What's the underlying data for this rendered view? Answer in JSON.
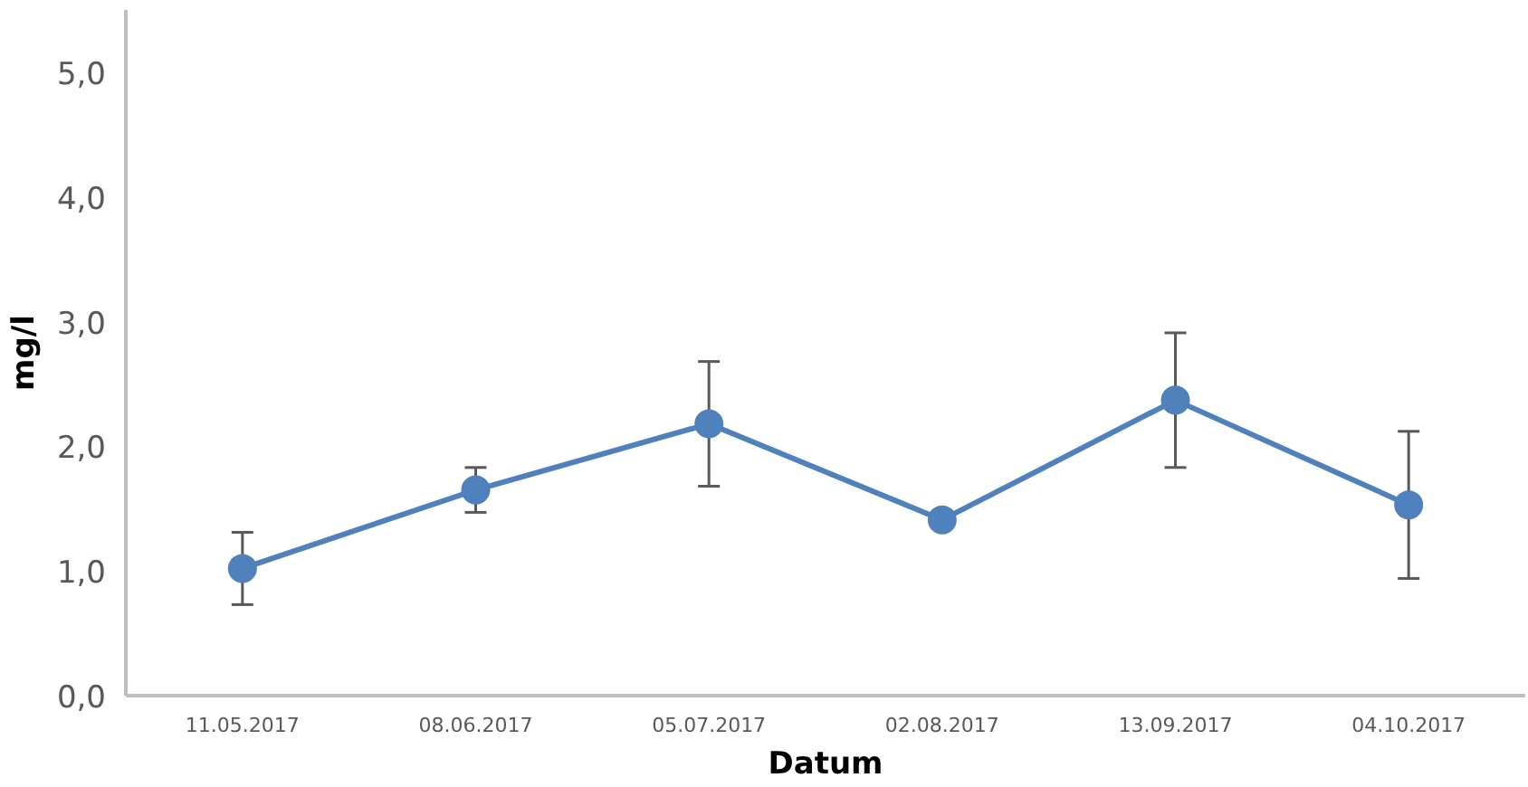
{
  "chart_data": {
    "type": "line",
    "xlabel": "Datum",
    "ylabel": "mg/l",
    "categories": [
      "11.05.2017",
      "08.06.2017",
      "05.07.2017",
      "02.08.2017",
      "13.09.2017",
      "04.10.2017"
    ],
    "series": [
      {
        "color": "#4f81bd",
        "values": [
          1.02,
          1.65,
          2.18,
          1.41,
          2.37,
          1.53
        ],
        "errors": [
          0.29,
          0.18,
          0.5,
          null,
          0.54,
          0.59
        ]
      }
    ],
    "ylim": [
      0,
      5.5
    ],
    "yticks": [
      {
        "value": 0,
        "label": "0,0"
      },
      {
        "value": 1,
        "label": "1,0"
      },
      {
        "value": 2,
        "label": "2,0"
      },
      {
        "value": 3,
        "label": "3,0"
      },
      {
        "value": 4,
        "label": "4,0"
      },
      {
        "value": 5,
        "label": "5,0"
      }
    ],
    "marker": "circle",
    "line_style": "solid",
    "grid": false
  }
}
